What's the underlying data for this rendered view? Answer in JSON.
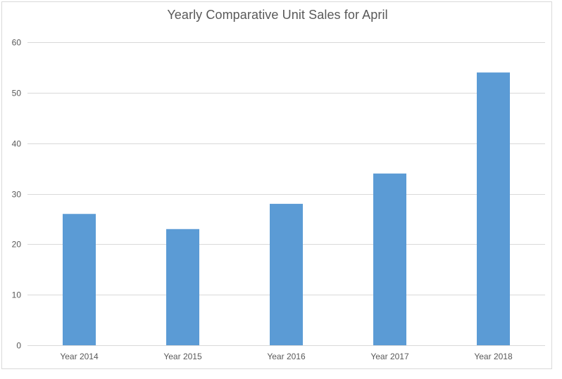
{
  "chart_data": {
    "type": "bar",
    "title": "Yearly Comparative Unit Sales for April",
    "categories": [
      "Year 2014",
      "Year 2015",
      "Year 2016",
      "Year 2017",
      "Year 2018"
    ],
    "values": [
      26,
      23,
      28,
      34,
      54
    ],
    "xlabel": "",
    "ylabel": "",
    "ylim": [
      0,
      60
    ],
    "yticks": [
      0,
      10,
      20,
      30,
      40,
      50,
      60
    ],
    "grid": true,
    "legend": "none",
    "bar_color": "#5b9bd5",
    "grid_color": "#d9d9d9",
    "text_color": "#595959"
  }
}
